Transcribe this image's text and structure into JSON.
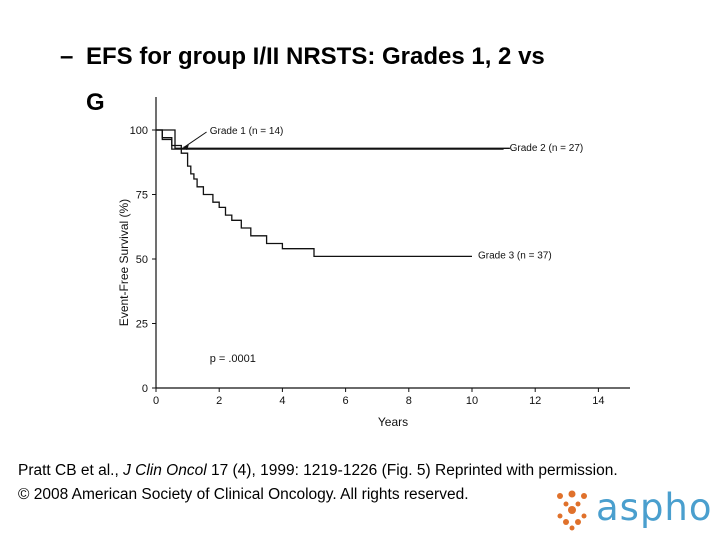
{
  "title": {
    "line1": "EFS for group I/II NRSTS: Grades 1, 2 vs",
    "line2": "G"
  },
  "chart_data": {
    "type": "line",
    "xlabel": "Years",
    "ylabel": "Event-Free Survival (%)",
    "xlim": [
      0,
      15
    ],
    "ylim": [
      0,
      100
    ],
    "xticks": [
      0,
      2,
      4,
      6,
      8,
      10,
      12,
      14
    ],
    "yticks": [
      0,
      25,
      50,
      75,
      100
    ],
    "annotation": "p = .0001",
    "series": [
      {
        "name": "Grade 1 (n = 14)",
        "points": [
          [
            0,
            100
          ],
          [
            0.6,
            100
          ],
          [
            0.6,
            92.9
          ],
          [
            11.2,
            92.9
          ]
        ]
      },
      {
        "name": "Grade 2 (n = 27)",
        "points": [
          [
            0,
            100
          ],
          [
            0.2,
            100
          ],
          [
            0.2,
            96.3
          ],
          [
            0.5,
            96.3
          ],
          [
            0.5,
            92.6
          ],
          [
            11.0,
            92.6
          ]
        ]
      },
      {
        "name": "Grade 3 (n = 37)",
        "points": [
          [
            0,
            100
          ],
          [
            0.2,
            100
          ],
          [
            0.2,
            97
          ],
          [
            0.5,
            97
          ],
          [
            0.5,
            94
          ],
          [
            0.8,
            94
          ],
          [
            0.8,
            91
          ],
          [
            1.0,
            91
          ],
          [
            1.0,
            86
          ],
          [
            1.1,
            86
          ],
          [
            1.1,
            83
          ],
          [
            1.2,
            83
          ],
          [
            1.2,
            81
          ],
          [
            1.3,
            81
          ],
          [
            1.3,
            78
          ],
          [
            1.5,
            78
          ],
          [
            1.5,
            75
          ],
          [
            1.8,
            75
          ],
          [
            1.8,
            72
          ],
          [
            2.0,
            72
          ],
          [
            2.0,
            70
          ],
          [
            2.2,
            70
          ],
          [
            2.2,
            67
          ],
          [
            2.4,
            67
          ],
          [
            2.4,
            65
          ],
          [
            2.7,
            65
          ],
          [
            2.7,
            62
          ],
          [
            3.0,
            62
          ],
          [
            3.0,
            59
          ],
          [
            3.5,
            59
          ],
          [
            3.5,
            56
          ],
          [
            4.0,
            56
          ],
          [
            4.0,
            54
          ],
          [
            5.0,
            54
          ],
          [
            5.0,
            51
          ],
          [
            10.0,
            51
          ]
        ]
      }
    ],
    "line_color": "#111111"
  },
  "citation": {
    "line1_prefix": "Pratt CB et al., ",
    "journal": "J Clin Oncol",
    "line1_suffix": " 17 (4), 1999: 1219-1226 (Fig. 5)  Reprinted with permission.",
    "line2": "© 2008 American Society of Clinical Oncology.  All rights reserved."
  },
  "logo": {
    "text": "aspho",
    "color": "#4a9fce",
    "dots_color": "#e0712b"
  }
}
